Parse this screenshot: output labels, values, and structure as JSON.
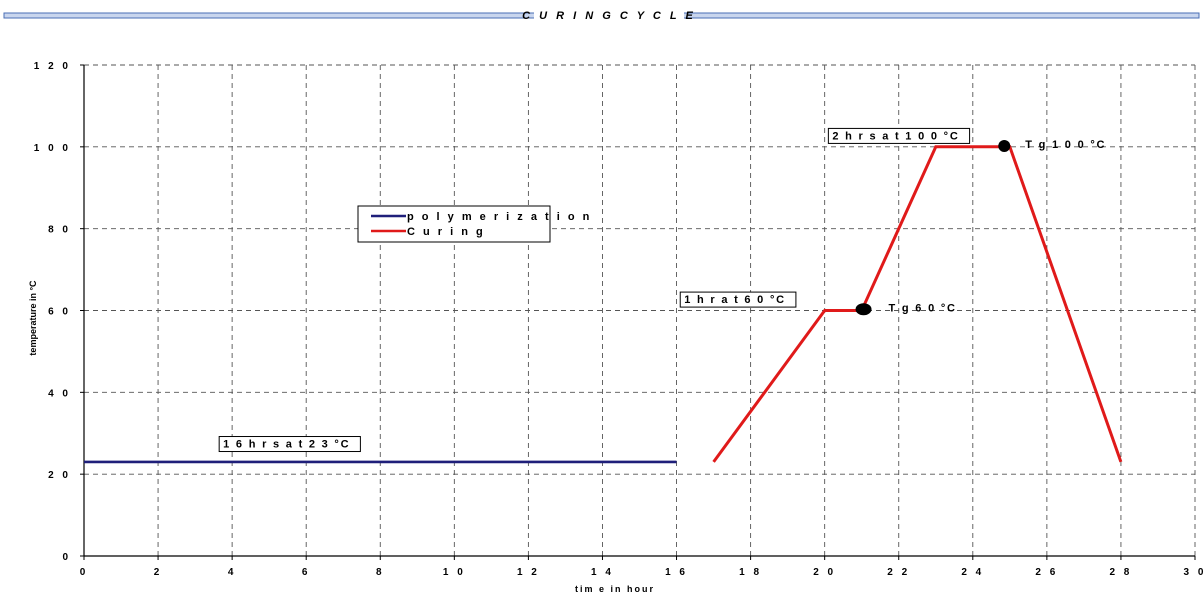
{
  "chart_data": {
    "type": "line",
    "title": "C U R I N G  C Y C L E",
    "xlabel": "tim e  in  hour",
    "ylabel": "temperature in °C",
    "xlim": [
      0,
      30
    ],
    "ylim": [
      0,
      120
    ],
    "x_ticks": [
      0,
      2,
      4,
      6,
      8,
      10,
      12,
      14,
      16,
      18,
      20,
      22,
      24,
      26,
      28,
      30
    ],
    "y_ticks": [
      0,
      20,
      40,
      60,
      80,
      100,
      120
    ],
    "x_tick_labels": [
      "0",
      "2",
      "4",
      "6",
      "8",
      "1 0",
      "1 2",
      "1 4",
      "1 6",
      "1 8",
      "2 0",
      "2 2",
      "2 4",
      "2 6",
      "2 8",
      "3 0"
    ],
    "y_tick_labels": [
      "0",
      "2 0",
      "4 0",
      "6 0",
      "8 0",
      "1 0 0",
      "1 2 0"
    ],
    "grid": true,
    "legend_placement": "center-left",
    "series": [
      {
        "name": "p o l y m e r i z a t i o n",
        "color": "#1f1f7a",
        "x": [
          0,
          16
        ],
        "y": [
          23,
          23
        ]
      },
      {
        "name": "C u r i n g",
        "color": "#e01a1a",
        "x": [
          17,
          20,
          21,
          23,
          25,
          28
        ],
        "y": [
          23,
          60,
          60,
          100,
          100,
          23
        ]
      }
    ],
    "points": [
      {
        "x": 21.05,
        "y": 60.3,
        "label": "T g  6 0 °C"
      },
      {
        "x": 24.85,
        "y": 100.2,
        "label": "T g  1 0 0 °C"
      }
    ],
    "annotations": [
      {
        "text": "1 6  h r s  a t  2 3 °C",
        "x": 3.65,
        "y": 29.2
      },
      {
        "text": "1  h r  a t  6 0 °C",
        "x": 16.1,
        "y": 64.5
      },
      {
        "text": "2  h r s  a t  1 0 0 °C",
        "x": 20.1,
        "y": 104.5
      }
    ]
  }
}
